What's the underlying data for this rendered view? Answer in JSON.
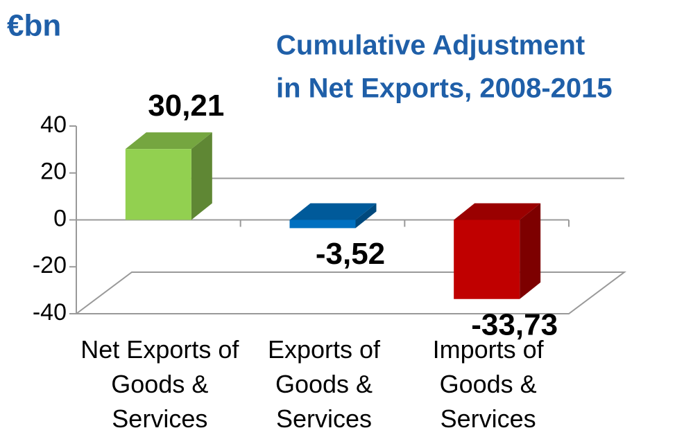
{
  "chart_data": {
    "type": "bar3d",
    "unit_label": "€bn",
    "title": [
      "Cumulative Adjustment",
      "in Net Exports, 2008-2015"
    ],
    "categories": [
      "Net Exports of Goods & Services",
      "Exports of Goods & Services",
      "Imports of Goods & Services"
    ],
    "values": [
      30.21,
      -3.52,
      -33.73
    ],
    "value_labels": [
      "30,21",
      "-3,52",
      "-33,73"
    ],
    "colors": [
      "#92d050",
      "#0070c0",
      "#c00000"
    ],
    "ylim": [
      -40,
      40
    ],
    "yticks": [
      -40,
      -20,
      0,
      20,
      40
    ]
  }
}
